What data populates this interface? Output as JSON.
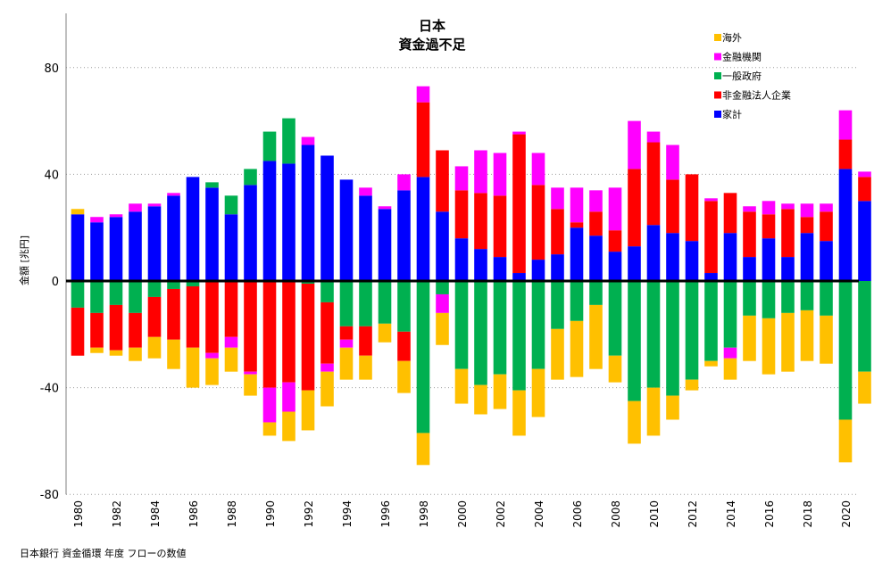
{
  "chart_data": {
    "type": "bar",
    "stacked": true,
    "title": "日本",
    "subtitle": "資金過不足",
    "ylabel": "金額 [兆円]",
    "xlabel": "",
    "ylim": [
      -80,
      100
    ],
    "yticks": [
      -80,
      -40,
      0,
      40,
      80
    ],
    "gridlines": "dotted",
    "legend_position": "top-right",
    "years": [
      1980,
      1981,
      1982,
      1983,
      1984,
      1985,
      1986,
      1987,
      1988,
      1989,
      1990,
      1991,
      1992,
      1993,
      1994,
      1995,
      1996,
      1997,
      1998,
      1999,
      2000,
      2001,
      2002,
      2003,
      2004,
      2005,
      2006,
      2007,
      2008,
      2009,
      2010,
      2011,
      2012,
      2013,
      2014,
      2015,
      2016,
      2017,
      2018,
      2019,
      2020,
      2021
    ],
    "x_tick_labels": [
      "1980",
      "1982",
      "1984",
      "1986",
      "1988",
      "1990",
      "1992",
      "1994",
      "1996",
      "1998",
      "2000",
      "2002",
      "2004",
      "2006",
      "2008",
      "2010",
      "2012",
      "2014",
      "2016",
      "2018",
      "2020"
    ],
    "series": [
      {
        "name": "海外",
        "color": "#FFC000",
        "values": [
          2,
          -2,
          -2,
          -5,
          -8,
          -11,
          -15,
          -10,
          -9,
          -8,
          -5,
          -11,
          -15,
          -13,
          -12,
          -9,
          -7,
          -12,
          -12,
          -12,
          -13,
          -11,
          -13,
          -17,
          -18,
          -19,
          -21,
          -24,
          -10,
          -16,
          -18,
          -9,
          -4,
          -2,
          -8,
          -17,
          -21,
          -22,
          -19,
          -18,
          -16,
          -12
        ]
      },
      {
        "name": "金融機関",
        "color": "#FF00FF",
        "values": [
          0,
          2,
          1,
          3,
          1,
          1,
          0,
          -2,
          -4,
          -1,
          -13,
          -11,
          3,
          -3,
          -3,
          3,
          1,
          6,
          6,
          -7,
          9,
          16,
          16,
          1,
          12,
          8,
          13,
          8,
          16,
          18,
          4,
          13,
          0,
          1,
          -4,
          2,
          5,
          2,
          5,
          3,
          11,
          2
        ]
      },
      {
        "name": "一般政府",
        "color": "#00B050",
        "values": [
          -10,
          -12,
          -9,
          -12,
          -6,
          -3,
          -2,
          2,
          7,
          6,
          11,
          17,
          -1,
          -8,
          -17,
          -17,
          -16,
          -19,
          -57,
          -5,
          -33,
          -39,
          -35,
          -41,
          -33,
          -18,
          -15,
          -9,
          -28,
          -45,
          -40,
          -43,
          -37,
          -30,
          -25,
          -13,
          -14,
          -12,
          -11,
          -13,
          -52,
          -34
        ]
      },
      {
        "name": "非金融法人企業",
        "color": "#FF0000",
        "values": [
          -18,
          -13,
          -17,
          -13,
          -15,
          -19,
          -23,
          -27,
          -21,
          -34,
          -40,
          -38,
          -40,
          -23,
          -5,
          -11,
          0,
          -11,
          28,
          23,
          18,
          21,
          23,
          52,
          28,
          17,
          2,
          9,
          8,
          29,
          31,
          20,
          25,
          27,
          15,
          17,
          9,
          18,
          6,
          11,
          11,
          9
        ]
      },
      {
        "name": "家計",
        "color": "#0000FF",
        "values": [
          25,
          22,
          24,
          26,
          28,
          32,
          39,
          35,
          25,
          36,
          45,
          44,
          51,
          47,
          38,
          32,
          27,
          34,
          39,
          26,
          16,
          12,
          9,
          3,
          8,
          10,
          20,
          17,
          11,
          13,
          21,
          18,
          15,
          3,
          18,
          9,
          16,
          9,
          18,
          15,
          42,
          30
        ]
      }
    ]
  },
  "source_text": "日本銀行 資金循環 年度 フローの数値"
}
